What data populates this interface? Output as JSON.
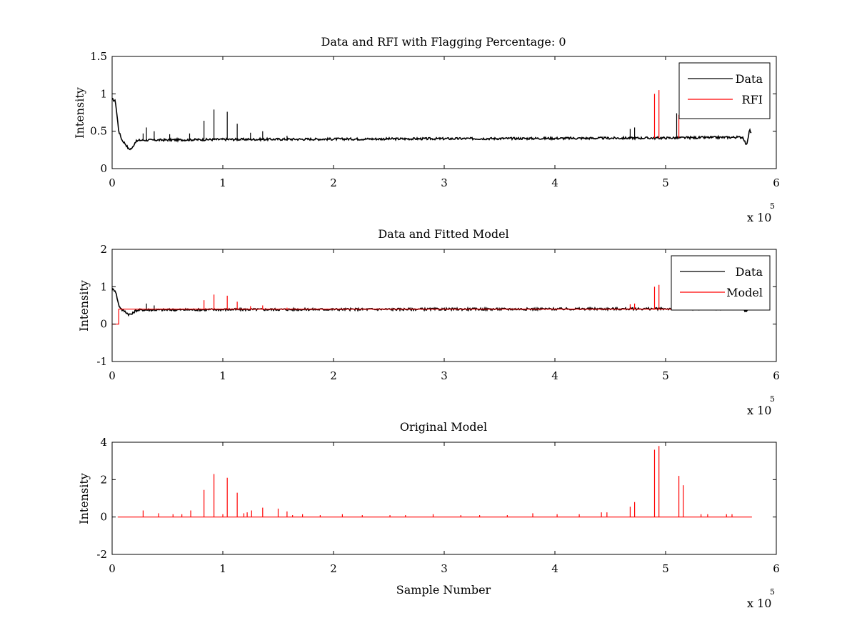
{
  "chart_data": [
    {
      "type": "line",
      "title": "Data and RFI with Flagging Percentage: 0",
      "xlabel": "",
      "ylabel": "Intensity",
      "xlim": [
        0,
        600000
      ],
      "ylim": [
        0,
        1.5
      ],
      "xticks": [
        0,
        1,
        2,
        3,
        4,
        5,
        6
      ],
      "xtick_labels": [
        "0",
        "1",
        "2",
        "3",
        "4",
        "5",
        "6"
      ],
      "yticks": [
        0,
        0.5,
        1,
        1.5
      ],
      "ytick_labels": [
        "0",
        "0.5",
        "1",
        "1.5"
      ],
      "x_exponent": {
        "base": "x 10",
        "power": "5"
      },
      "legend": {
        "location": "top-right",
        "entries": [
          "Data",
          "RFI"
        ]
      },
      "grid": false,
      "series": [
        {
          "name": "Data",
          "color": "#000000",
          "baseline": [
            [
              0,
              0.93
            ],
            [
              3000,
              0.9
            ],
            [
              6000,
              0.5
            ],
            [
              9000,
              0.38
            ],
            [
              12000,
              0.33
            ],
            [
              15000,
              0.26
            ],
            [
              18000,
              0.27
            ],
            [
              21000,
              0.36
            ],
            [
              25000,
              0.38
            ],
            [
              100000,
              0.39
            ],
            [
              300000,
              0.4
            ],
            [
              500000,
              0.41
            ],
            [
              570000,
              0.42
            ],
            [
              573000,
              0.31
            ],
            [
              576000,
              0.52
            ],
            [
              578000,
              0.45
            ]
          ],
          "spikes": [
            [
              28000,
              0.47
            ],
            [
              31000,
              0.55
            ],
            [
              38000,
              0.5
            ],
            [
              52000,
              0.46
            ],
            [
              70000,
              0.47
            ],
            [
              83000,
              0.64
            ],
            [
              92000,
              0.79
            ],
            [
              104000,
              0.76
            ],
            [
              113000,
              0.6
            ],
            [
              125000,
              0.48
            ],
            [
              136000,
              0.5
            ],
            [
              158000,
              0.44
            ],
            [
              468000,
              0.53
            ],
            [
              472000,
              0.55
            ],
            [
              510000,
              0.74
            ]
          ]
        },
        {
          "name": "RFI",
          "color": "#ff0000",
          "spikes": [
            [
              490000,
              1.0
            ],
            [
              494000,
              1.05
            ],
            [
              512000,
              0.72
            ]
          ]
        }
      ]
    },
    {
      "type": "line",
      "title": "Data and Fitted Model",
      "xlabel": "",
      "ylabel": "Intensity",
      "xlim": [
        0,
        600000
      ],
      "ylim": [
        -1,
        2
      ],
      "xticks": [
        0,
        1,
        2,
        3,
        4,
        5,
        6
      ],
      "xtick_labels": [
        "0",
        "1",
        "2",
        "3",
        "4",
        "5",
        "6"
      ],
      "yticks": [
        -1,
        0,
        1,
        2
      ],
      "ytick_labels": [
        "-1",
        "0",
        "1",
        "2"
      ],
      "x_exponent": {
        "base": "x 10",
        "power": "5"
      },
      "legend": {
        "location": "top-right",
        "entries": [
          "Data",
          "Model"
        ]
      },
      "grid": false,
      "series": [
        {
          "name": "Data",
          "color": "#000000",
          "baseline": [
            [
              0,
              0.93
            ],
            [
              3000,
              0.9
            ],
            [
              6000,
              0.5
            ],
            [
              9000,
              0.38
            ],
            [
              12000,
              0.33
            ],
            [
              15000,
              0.26
            ],
            [
              18000,
              0.27
            ],
            [
              21000,
              0.36
            ],
            [
              25000,
              0.38
            ],
            [
              100000,
              0.39
            ],
            [
              300000,
              0.4
            ],
            [
              500000,
              0.41
            ],
            [
              570000,
              0.42
            ],
            [
              573000,
              0.31
            ],
            [
              576000,
              0.52
            ],
            [
              578000,
              0.45
            ]
          ],
          "spikes": [
            [
              31000,
              0.55
            ],
            [
              38000,
              0.5
            ]
          ]
        },
        {
          "name": "Model",
          "color": "#ff0000",
          "baseline": [
            [
              0,
              0.0
            ],
            [
              6000,
              0.0
            ],
            [
              6000,
              0.4
            ],
            [
              578000,
              0.4
            ]
          ],
          "spikes": [
            [
              83000,
              0.64
            ],
            [
              92000,
              0.79
            ],
            [
              104000,
              0.76
            ],
            [
              113000,
              0.6
            ],
            [
              125000,
              0.48
            ],
            [
              136000,
              0.5
            ],
            [
              158000,
              0.44
            ],
            [
              468000,
              0.53
            ],
            [
              472000,
              0.55
            ],
            [
              490000,
              1.0
            ],
            [
              494000,
              1.05
            ],
            [
              512000,
              0.72
            ]
          ]
        }
      ]
    },
    {
      "type": "line",
      "title": "Original Model",
      "xlabel": "Sample Number",
      "ylabel": "Intensity",
      "xlim": [
        0,
        600000
      ],
      "ylim": [
        -2,
        4
      ],
      "xticks": [
        0,
        1,
        2,
        3,
        4,
        5,
        6
      ],
      "xtick_labels": [
        "0",
        "1",
        "2",
        "3",
        "4",
        "5",
        "6"
      ],
      "yticks": [
        -2,
        0,
        2,
        4
      ],
      "ytick_labels": [
        "-2",
        "0",
        "2",
        "4"
      ],
      "x_exponent": {
        "base": "x 10",
        "power": "5"
      },
      "legend": null,
      "grid": false,
      "series": [
        {
          "name": "Original Model",
          "color": "#ff0000",
          "baseline": [
            [
              5000,
              0.0
            ],
            [
              578000,
              0.0
            ]
          ],
          "spikes": [
            [
              28000,
              0.35
            ],
            [
              42000,
              0.2
            ],
            [
              55000,
              0.15
            ],
            [
              63000,
              0.15
            ],
            [
              71000,
              0.35
            ],
            [
              83000,
              1.45
            ],
            [
              92000,
              2.3
            ],
            [
              100000,
              0.15
            ],
            [
              104000,
              2.1
            ],
            [
              113000,
              1.3
            ],
            [
              119000,
              0.2
            ],
            [
              122000,
              0.25
            ],
            [
              126000,
              0.35
            ],
            [
              136000,
              0.5
            ],
            [
              150000,
              0.45
            ],
            [
              158000,
              0.3
            ],
            [
              163000,
              0.1
            ],
            [
              172000,
              0.15
            ],
            [
              188000,
              0.1
            ],
            [
              208000,
              0.15
            ],
            [
              226000,
              0.1
            ],
            [
              251000,
              0.1
            ],
            [
              265000,
              0.1
            ],
            [
              290000,
              0.15
            ],
            [
              315000,
              0.1
            ],
            [
              332000,
              0.1
            ],
            [
              357000,
              0.1
            ],
            [
              380000,
              0.2
            ],
            [
              402000,
              0.15
            ],
            [
              422000,
              0.15
            ],
            [
              442000,
              0.25
            ],
            [
              447000,
              0.25
            ],
            [
              468000,
              0.55
            ],
            [
              472000,
              0.8
            ],
            [
              490000,
              3.6
            ],
            [
              494000,
              3.8
            ],
            [
              512000,
              2.2
            ],
            [
              516000,
              1.7
            ],
            [
              532000,
              0.15
            ],
            [
              538000,
              0.15
            ],
            [
              555000,
              0.15
            ],
            [
              560000,
              0.15
            ]
          ]
        }
      ]
    }
  ]
}
